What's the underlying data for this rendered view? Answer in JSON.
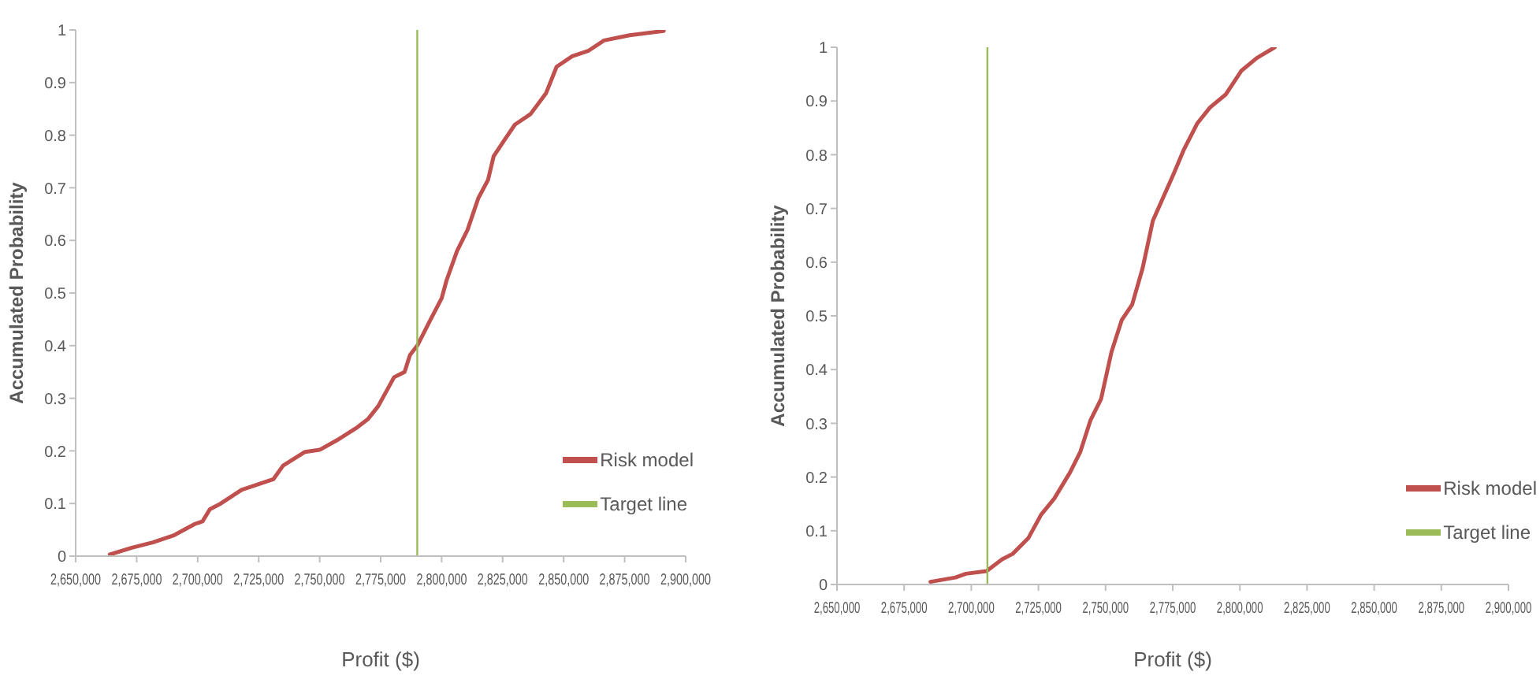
{
  "chart_data": [
    {
      "type": "line",
      "xlabel": "Profit ($)",
      "ylabel": "Accumulated Probability",
      "xlim": [
        2650000,
        2900000
      ],
      "xticks": [
        {
          "value": 2650000,
          "label": "2,650,000"
        },
        {
          "value": 2675000,
          "label": "2,675,000"
        },
        {
          "value": 2700000,
          "label": "2,700,000"
        },
        {
          "value": 2725000,
          "label": "2,725,000"
        },
        {
          "value": 2750000,
          "label": "2,750,000"
        },
        {
          "value": 2775000,
          "label": "2,775,000"
        },
        {
          "value": 2800000,
          "label": "2,800,000"
        },
        {
          "value": 2825000,
          "label": "2,825,000"
        },
        {
          "value": 2850000,
          "label": "2,850,000"
        },
        {
          "value": 2875000,
          "label": "2,875,000"
        },
        {
          "value": 2900000,
          "label": "2,900,000"
        }
      ],
      "ylim": [
        0,
        1
      ],
      "yticks": [
        0,
        0.1,
        0.2,
        0.3,
        0.4,
        0.5,
        0.6,
        0.7,
        0.8,
        0.9,
        1
      ],
      "grid": false,
      "marker": "none",
      "legend": "bottom right",
      "line_style": "solid",
      "series": [
        {
          "name": "Risk model",
          "color": "#c0504d",
          "x": [
            2664000,
            2673000,
            2681600,
            2690000,
            2698800,
            2702000,
            2705000,
            2709500,
            2718000,
            2731000,
            2735000,
            2744000,
            2750000,
            2757000,
            2765500,
            2769700,
            2774000,
            2780500,
            2784800,
            2787000,
            2790000,
            2795500,
            2800000,
            2802000,
            2806300,
            2810600,
            2815000,
            2819000,
            2821300,
            2825600,
            2830000,
            2836400,
            2842800,
            2847100,
            2853500,
            2860000,
            2866500,
            2877000,
            2891000
          ],
          "values": [
            0.003,
            0.016,
            0.026,
            0.039,
            0.061,
            0.066,
            0.089,
            0.1,
            0.126,
            0.146,
            0.172,
            0.198,
            0.202,
            0.22,
            0.245,
            0.26,
            0.285,
            0.34,
            0.35,
            0.382,
            0.4,
            0.45,
            0.49,
            0.524,
            0.58,
            0.62,
            0.68,
            0.715,
            0.76,
            0.79,
            0.82,
            0.84,
            0.88,
            0.93,
            0.95,
            0.96,
            0.98,
            0.99,
            0.998
          ]
        },
        {
          "name": "Target line",
          "color": "#9bbb59",
          "x": [
            2790000,
            2790000
          ],
          "values": [
            0,
            1
          ]
        }
      ]
    },
    {
      "type": "line",
      "xlabel": "Profit ($)",
      "ylabel": "Accumulated Probability",
      "xlim": [
        2650000,
        2900000
      ],
      "xticks": [
        {
          "value": 2650000,
          "label": "2,650,000"
        },
        {
          "value": 2675000,
          "label": "2,675,000"
        },
        {
          "value": 2700000,
          "label": "2,700,000"
        },
        {
          "value": 2725000,
          "label": "2,725,000"
        },
        {
          "value": 2750000,
          "label": "2,750,000"
        },
        {
          "value": 2775000,
          "label": "2,775,000"
        },
        {
          "value": 2800000,
          "label": "2,800,000"
        },
        {
          "value": 2825000,
          "label": "2,825,000"
        },
        {
          "value": 2850000,
          "label": "2,850,000"
        },
        {
          "value": 2875000,
          "label": "2,875,000"
        },
        {
          "value": 2900000,
          "label": "2,900,000"
        }
      ],
      "ylim": [
        0,
        1
      ],
      "yticks": [
        0,
        0.1,
        0.2,
        0.3,
        0.4,
        0.5,
        0.6,
        0.7,
        0.8,
        0.9,
        1
      ],
      "grid": false,
      "marker": "none",
      "legend": "bottom right",
      "line_style": "solid",
      "series": [
        {
          "name": "Risk model",
          "color": "#c0504d",
          "x": [
            2684800,
            2694100,
            2698000,
            2705700,
            2711500,
            2715400,
            2721200,
            2726000,
            2730900,
            2736700,
            2740600,
            2744400,
            2748300,
            2752200,
            2756000,
            2759900,
            2763800,
            2767600,
            2771500,
            2775400,
            2779200,
            2784100,
            2788900,
            2794700,
            2800500,
            2806300,
            2813000
          ],
          "values": [
            0.005,
            0.013,
            0.02,
            0.025,
            0.047,
            0.057,
            0.086,
            0.13,
            0.16,
            0.208,
            0.247,
            0.306,
            0.345,
            0.433,
            0.492,
            0.521,
            0.589,
            0.677,
            0.721,
            0.765,
            0.81,
            0.858,
            0.888,
            0.912,
            0.956,
            0.98,
            1.0
          ]
        },
        {
          "name": "Target line",
          "color": "#9bbb59",
          "x": [
            2706000,
            2706000
          ],
          "values": [
            0,
            1
          ]
        }
      ]
    }
  ]
}
